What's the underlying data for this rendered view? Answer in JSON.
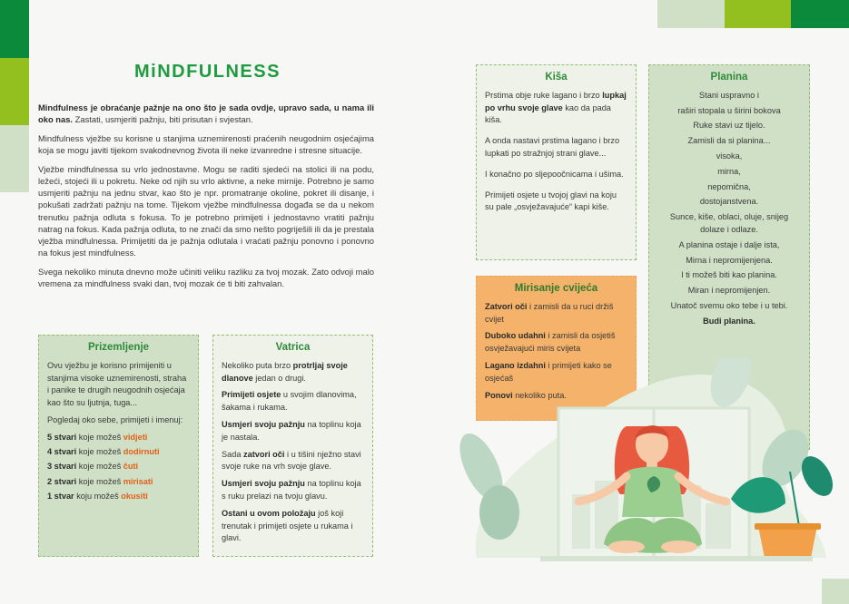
{
  "title": "MiNDFULNESS",
  "intro": {
    "p1_bold": "Mindfulness je obraćanje pažnje na ono što je sada ovdje, upravo sada, u nama ili oko nas.",
    "p1_rest": " Zastati, usmjeriti pažnju, biti prisutan i svjestan.",
    "p2": "Mindfulness vježbe su korisne u stanjima uznemirenosti praćenih neugodnim osjećajima koja se mogu javiti tijekom svakodnevnog života ili neke izvanredne i stresne situacije.",
    "p3": "Vježbe mindfulnessa su vrlo jednostavne. Mogu se raditi sjedeći na stolici ili na podu, ležeći, stojeći ili u pokretu. Neke od njih su vrlo aktivne, a neke mirnije. Potrebno je samo usmjeriti pažnju na jednu stvar, kao što je npr. promatranje okoline, pokret ili disanje, i pokušati zadržati pažnju na tome. Tijekom vježbe mindfulnessa događa se da u nekom trenutku pažnja odluta s fokusa. To je potrebno primijeti i jednostavno vratiti pažnju natrag na fokus. Kada pažnja odluta, to ne znači da smo nešto pogriješili ili da je prestala vježba mindfulnessa. Primijetiti da je pažnja odlutala i vraćati pažnju ponovno i ponovno na fokus jest mindfulness.",
    "p4": "Svega nekoliko minuta dnevno može učiniti veliku razliku za tvoj mozak. Zato odvoji malo vremena za mindfulness svaki dan, tvoj mozak će ti biti zahvalan."
  },
  "prizemljenje": {
    "title": "Prizemljenje",
    "p1": "Ovu vježbu je korisno primijeniti u stanjima visoke uznemirenosti, straha i panike te drugih neugodnih osjećaja kao što su ljutnja, tuga...",
    "p2": "Pogledaj oko sebe, primijeti i imenuj:",
    "items": [
      {
        "bold": "5 stvari",
        "mid": " koje možeš ",
        "hl": "vidjeti"
      },
      {
        "bold": "4 stvari",
        "mid": " koje možeš ",
        "hl": "dodirnuti"
      },
      {
        "bold": "3 stvari",
        "mid": " koje možeš ",
        "hl": "čuti"
      },
      {
        "bold": "2 stvari",
        "mid": " koje možeš ",
        "hl": "mirisati"
      },
      {
        "bold": "1 stvar",
        "mid": " koju možeš ",
        "hl": "okusiti"
      }
    ]
  },
  "vatrica": {
    "title": "Vatrica",
    "p1a": "Nekoliko puta brzo ",
    "p1b": "protrljaj svoje dlanove",
    "p1c": " jedan o drugi.",
    "p2a": "Primijeti osjete",
    "p2b": " u svojim dlanovima, šakama i rukama.",
    "p3a": "Usmjeri svoju pažnju",
    "p3b": " na toplinu koja je nastala.",
    "p4a": "Sada ",
    "p4b": "zatvori oči",
    "p4c": " i u tišini nježno stavi svoje ruke na vrh svoje glave.",
    "p5a": "Usmjeri svoju pažnju",
    "p5b": " na toplinu koja s ruku prelazi na tvoju glavu.",
    "p6a": "Ostani u ovom položaju",
    "p6b": " još koji trenutak i primijeti osjete u rukama i glavi."
  },
  "kisa": {
    "title": "Kiša",
    "p1a": "Prstima obje ruke lagano i brzo ",
    "p1b": "lupkaj po vrhu svoje glave",
    "p1c": " kao da pada kiša.",
    "p2": "A onda nastavi prstima lagano i brzo lupkati po stražnjoj strani glave...",
    "p3": "I konačno po sljepoočnicama i ušima.",
    "p4": "Primijeti osjete u tvojoj glavi na koju su pale „osvježavajuće“ kapi kiše."
  },
  "mirisanje": {
    "title": "Mirisanje cvijeća",
    "p1a": "Zatvori oči",
    "p1b": " i zamisli da u ruci držiš cvijet",
    "p2a": "Duboko udahni",
    "p2b": " i zamisli da osjetiš osvježavajući miris cvijeta",
    "p3a": "Lagano izdahni",
    "p3b": " i primijeti kako se osjećaš",
    "p4a": "Ponovi",
    "p4b": " nekoliko puta."
  },
  "planina": {
    "title": "Planina",
    "lines": [
      "Stani uspravno i",
      "raširi stopala u širini bokova",
      "Ruke stavi uz tijelo.",
      "Zamisli da si planina...",
      "visoka,",
      "mirna,",
      "nepomična,",
      "dostojanstvena.",
      "Sunce, kiše, oblaci, oluje, snijeg dolaze i odlaze.",
      "A planina ostaje i dalje ista,",
      "Mirna i nepromijenjena.",
      "I ti možeš biti kao planina.",
      "Miran i nepromijenjen.",
      "Unatoč svemu oko tebe i u tebi."
    ],
    "last": "Budi planina."
  },
  "colors": {
    "green_dark": "#0a8a3a",
    "green_lime": "#93c01f",
    "green_pale": "#cfe0c6",
    "orange_box": "#f5b26a",
    "orange_text": "#e2601a"
  }
}
